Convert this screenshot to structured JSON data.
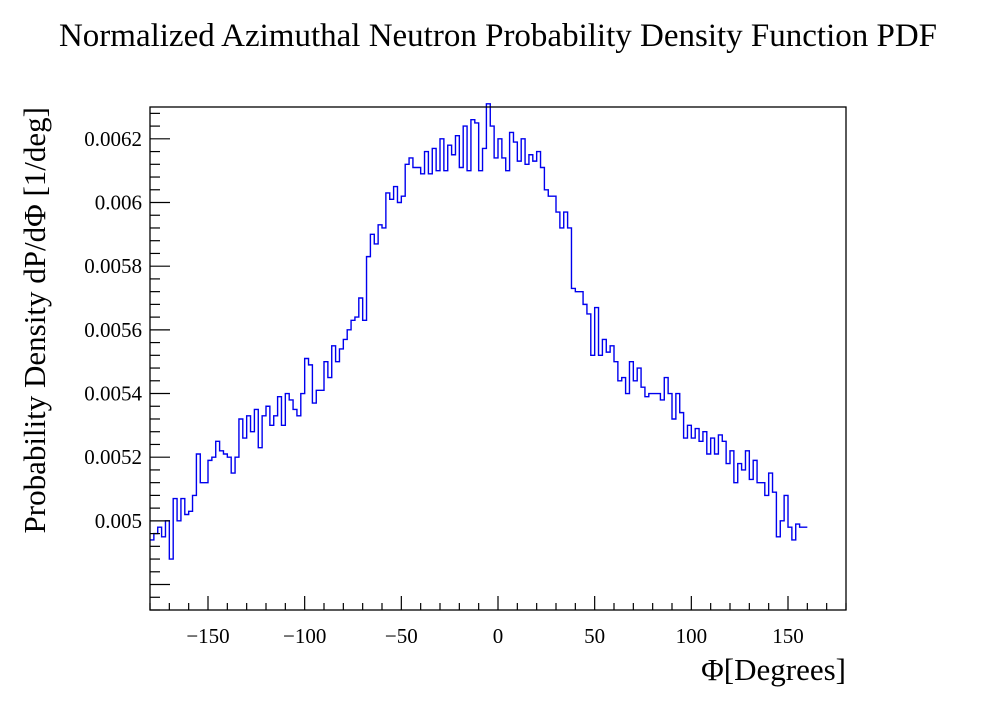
{
  "chart_data": {
    "type": "histogram",
    "title": "Normalized Azimuthal Neutron Probability Density Function PDF",
    "xlabel": "Φ[Degrees]",
    "ylabel": "Probability Density dP/dΦ [1/deg]",
    "xlim": [
      -180,
      180
    ],
    "ylim": [
      0.00472,
      0.0063
    ],
    "x_ticks": [
      -150,
      -100,
      -50,
      0,
      50,
      100,
      150
    ],
    "x_tick_labels": [
      "−150",
      "−100",
      "−50",
      "0",
      "50",
      "100",
      "150"
    ],
    "y_ticks": [
      0.005,
      0.0052,
      0.0054,
      0.0056,
      0.0058,
      0.006,
      0.0062
    ],
    "y_tick_labels": [
      "0.005",
      "0.0052",
      "0.0054",
      "0.0056",
      "0.0058",
      "0.006",
      "0.0062"
    ],
    "bin_width": 2,
    "bin_start": -180,
    "values": [
      0.00494,
      0.00496,
      0.00498,
      0.00495,
      0.005,
      0.00488,
      0.00507,
      0.005,
      0.00507,
      0.00502,
      0.00503,
      0.00508,
      0.00521,
      0.00512,
      0.00512,
      0.00519,
      0.0052,
      0.00525,
      0.00522,
      0.00521,
      0.0052,
      0.00515,
      0.0052,
      0.00532,
      0.00526,
      0.00533,
      0.00528,
      0.00535,
      0.00523,
      0.00533,
      0.00536,
      0.0053,
      0.00533,
      0.00539,
      0.0053,
      0.0054,
      0.00538,
      0.00535,
      0.00533,
      0.0054,
      0.00551,
      0.00549,
      0.00537,
      0.00541,
      0.00541,
      0.0055,
      0.00545,
      0.00555,
      0.0055,
      0.00554,
      0.00557,
      0.0056,
      0.00563,
      0.00564,
      0.0057,
      0.00563,
      0.00583,
      0.0059,
      0.00587,
      0.00593,
      0.00592,
      0.00603,
      0.00601,
      0.00605,
      0.006,
      0.00602,
      0.00612,
      0.00614,
      0.00611,
      0.00611,
      0.00609,
      0.00616,
      0.00609,
      0.00617,
      0.0061,
      0.0062,
      0.0061,
      0.00618,
      0.00615,
      0.00621,
      0.00611,
      0.00624,
      0.0061,
      0.00626,
      0.00625,
      0.0061,
      0.00617,
      0.00631,
      0.00624,
      0.00614,
      0.0062,
      0.00614,
      0.0061,
      0.00622,
      0.00619,
      0.00613,
      0.0062,
      0.00612,
      0.00615,
      0.00613,
      0.00616,
      0.00611,
      0.00604,
      0.00602,
      0.00602,
      0.00597,
      0.00592,
      0.00597,
      0.00592,
      0.00573,
      0.00572,
      0.00572,
      0.00568,
      0.00565,
      0.00552,
      0.00567,
      0.00552,
      0.00557,
      0.00553,
      0.00555,
      0.0055,
      0.00544,
      0.00545,
      0.0054,
      0.0055,
      0.00544,
      0.00548,
      0.00542,
      0.00539,
      0.0054,
      0.0054,
      0.0054,
      0.00538,
      0.00545,
      0.0054,
      0.00532,
      0.0054,
      0.00534,
      0.00526,
      0.0053,
      0.00526,
      0.00529,
      0.00525,
      0.00528,
      0.00521,
      0.00526,
      0.00521,
      0.00527,
      0.00525,
      0.00518,
      0.00522,
      0.00512,
      0.00518,
      0.00516,
      0.00522,
      0.00513,
      0.00519,
      0.00512,
      0.00512,
      0.00508,
      0.00515,
      0.00509,
      0.00495,
      0.005,
      0.00508,
      0.00498,
      0.00494,
      0.00499,
      0.00498,
      0.00498
    ]
  }
}
